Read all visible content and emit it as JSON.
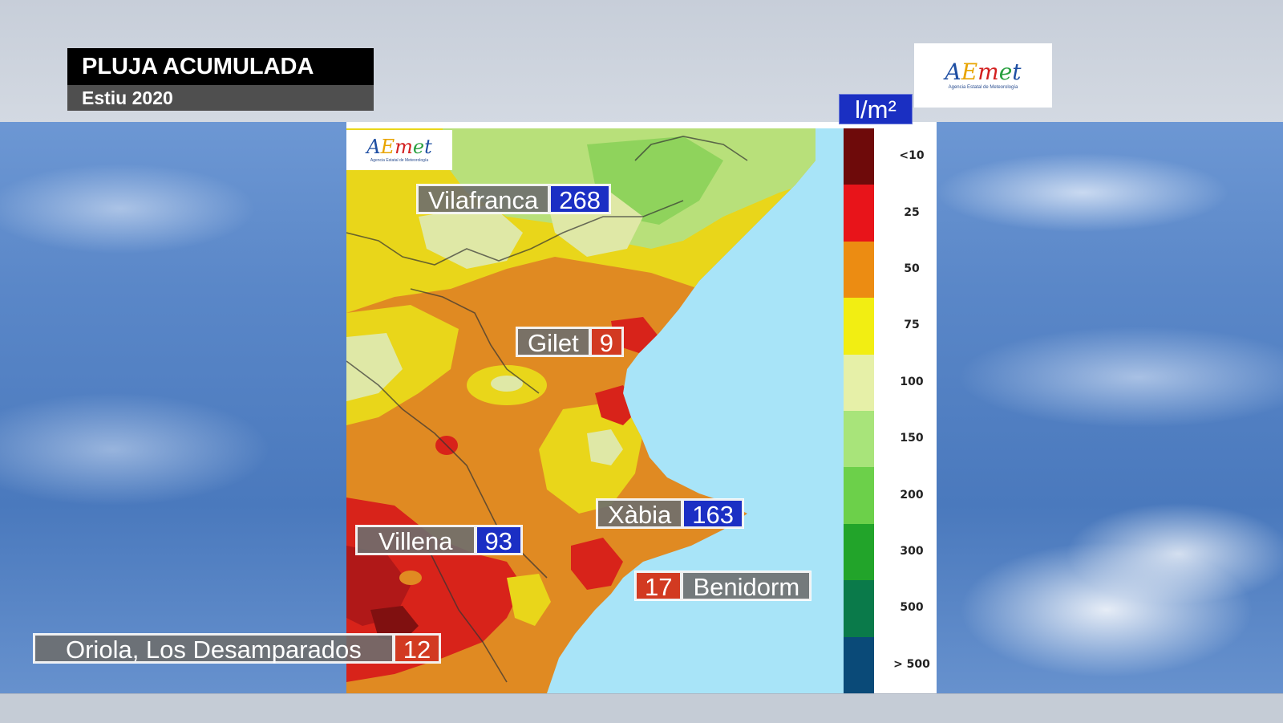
{
  "title": {
    "main": "PLUJA ACUMULADA",
    "sub": "Estiu 2020"
  },
  "logo": {
    "text": "AEmet",
    "subtitle": "Agencia Estatal de Meteorología"
  },
  "legend": {
    "unit": "l/m²",
    "items": [
      {
        "label": "<10",
        "color": "#6e0a0a"
      },
      {
        "label": "25",
        "color": "#e8141a"
      },
      {
        "label": "50",
        "color": "#ec8c12"
      },
      {
        "label": "75",
        "color": "#f2ee12"
      },
      {
        "label": "100",
        "color": "#e6f0a8"
      },
      {
        "label": "150",
        "color": "#a8e47a"
      },
      {
        "label": "200",
        "color": "#6cd04a"
      },
      {
        "label": "300",
        "color": "#22a42a"
      },
      {
        "label": "500",
        "color": "#0a7a4a"
      },
      {
        "label": "> 500",
        "color": "#0a4a78"
      }
    ]
  },
  "locations": [
    {
      "name": "Vilafranca",
      "value": "268",
      "value_color": "blue"
    },
    {
      "name": "Gilet",
      "value": "9",
      "value_color": "red"
    },
    {
      "name": "Xàbia",
      "value": "163",
      "value_color": "blue"
    },
    {
      "name": "Villena",
      "value": "93",
      "value_color": "blue"
    },
    {
      "name": "Benidorm",
      "value": "17",
      "value_color": "red"
    },
    {
      "name": "Oriola, Los Desamparados",
      "value": "12",
      "value_color": "red"
    }
  ],
  "colors": {
    "sea": "#a8e4f8",
    "label_blue": "#1b2fc4",
    "label_red": "#d23a21"
  }
}
